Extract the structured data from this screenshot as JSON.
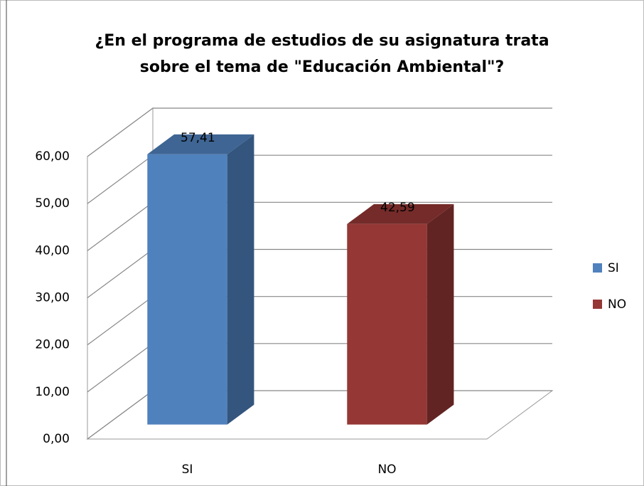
{
  "chart_data": {
    "type": "bar3d",
    "title": [
      "¿En el programa de estudios de su asignatura trata",
      "sobre el tema de \"Educación Ambiental\"?"
    ],
    "categories": [
      "SI",
      "NO"
    ],
    "values": [
      57.41,
      42.59
    ],
    "value_labels": [
      "57,41",
      "42,59"
    ],
    "colors": [
      "#4f81bd",
      "#953735"
    ],
    "ylim": [
      0,
      60
    ],
    "yticks": [
      {
        "value": 0,
        "label": "0,00"
      },
      {
        "value": 10,
        "label": "10,00"
      },
      {
        "value": 20,
        "label": "20,00"
      },
      {
        "value": 30,
        "label": "30,00"
      },
      {
        "value": 40,
        "label": "40,00"
      },
      {
        "value": 50,
        "label": "50,00"
      },
      {
        "value": 60,
        "label": "60,00"
      }
    ],
    "grid": true,
    "legend": "right"
  }
}
